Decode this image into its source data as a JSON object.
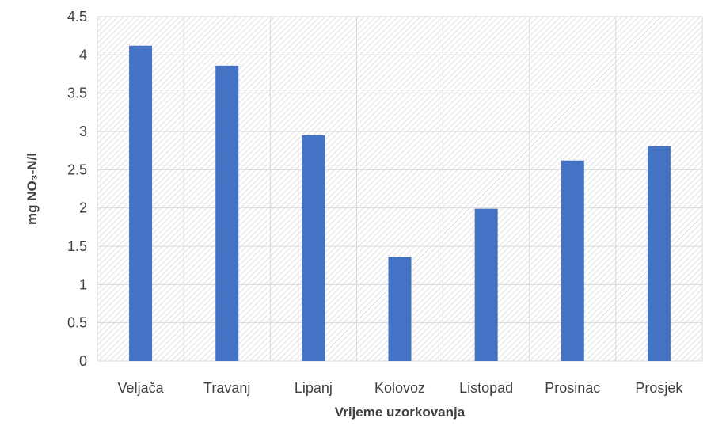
{
  "chart_data": {
    "type": "bar",
    "title": "",
    "xlabel": "Vrijeme uzorkovanja",
    "ylabel": "mg NO₃-N/l",
    "categories": [
      "Veljača",
      "Travanj",
      "Lipanj",
      "Kolovoz",
      "Listopad",
      "Prosinac",
      "Prosjek"
    ],
    "values": [
      4.12,
      3.86,
      2.95,
      1.36,
      1.99,
      2.62,
      2.81
    ],
    "ylim": [
      0,
      4.5
    ],
    "yticks": [
      "0",
      "0.5",
      "1",
      "1.5",
      "2",
      "2.5",
      "3",
      "3.5",
      "4",
      "4.5"
    ],
    "grid": true,
    "legend": "none",
    "colors": {
      "bar": "#4472C4",
      "grid": "#d9d9d9",
      "hatch": "#d0d0d0",
      "text": "#404040"
    }
  }
}
